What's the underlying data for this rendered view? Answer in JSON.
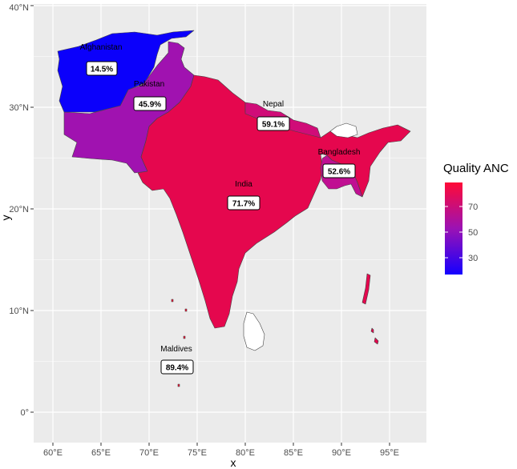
{
  "axes": {
    "xlabel": "x",
    "ylabel": "y",
    "x_ticks": [
      "60°E",
      "65°E",
      "70°E",
      "75°E",
      "80°E",
      "85°E",
      "90°E",
      "95°E"
    ],
    "y_ticks": [
      "0°",
      "10°N",
      "20°N",
      "30°N",
      "40°N"
    ]
  },
  "legend": {
    "title": "Quality ANC",
    "ticks": [
      "30",
      "50",
      "70"
    ],
    "colors": {
      "low": "#1400ff",
      "mid": "#9b12b4",
      "high": "#ff0a37"
    }
  },
  "regions": [
    {
      "name": "Afghanistan",
      "value_label": "14.5%",
      "color": "#0b00fb"
    },
    {
      "name": "Pakistan",
      "value_label": "45.9%",
      "color": "#a012b0"
    },
    {
      "name": "Nepal",
      "value_label": "59.1%",
      "color": "#d00c78"
    },
    {
      "name": "Bangladesh",
      "value_label": "52.6%",
      "color": "#c00f92"
    },
    {
      "name": "India",
      "value_label": "71.7%",
      "color": "#e5074e"
    },
    {
      "name": "Maldives",
      "value_label": "89.4%",
      "color": "#ff0b33"
    },
    {
      "name": "",
      "value_label": "",
      "color": "#ffffff"
    }
  ],
  "colors": {
    "panel": "#ebebeb",
    "grid": "#ffffff",
    "no_data": "#ffffff"
  }
}
